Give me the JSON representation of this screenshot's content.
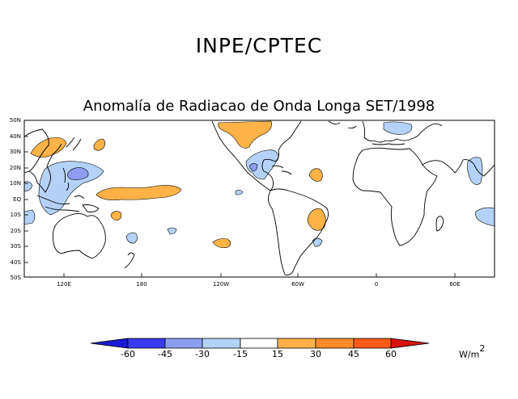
{
  "header": {
    "institution": "INPE/CPTEC",
    "map_title": "Anomalía de Radiacao de Onda Longa SET/1998"
  },
  "axes": {
    "latitudes": [
      "50N",
      "40N",
      "30N",
      "20N",
      "10N",
      "EQ",
      "10S",
      "20S",
      "30S",
      "40S",
      "50S"
    ],
    "longitudes": [
      "120E",
      "180",
      "120W",
      "60W",
      "0",
      "60E"
    ]
  },
  "colorbar": {
    "levels": [
      "-60",
      "-45",
      "-30",
      "-15",
      "15",
      "30",
      "45",
      "60"
    ],
    "colors": [
      "#1a1ad6",
      "#3b3bf5",
      "#8c9df2",
      "#b4d2f8",
      "#ffffff",
      "#ffb347",
      "#ff8c28",
      "#ff5a19",
      "#d61414"
    ],
    "units": "W/m",
    "units_power": "2"
  },
  "map_colors": {
    "positive": "#ffb347",
    "negative_light": "#b4d2f8",
    "negative_mid": "#8c9df2"
  }
}
